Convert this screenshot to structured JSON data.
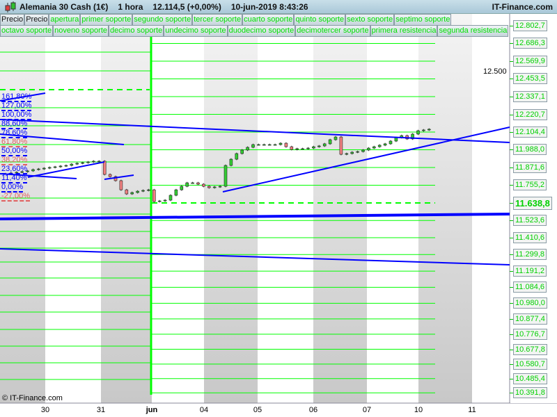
{
  "header": {
    "instrument": "Alemania 30 Cash (1€)",
    "timeframe": "1 hora",
    "price": "12.114,5 (+0,00%)",
    "datetime": "10-jun-2019 8:43:26",
    "site": "IT-Finance.com",
    "logo_icon": "candlestick-icon"
  },
  "buttons_row1": [
    "Precio",
    "Precio",
    "apertura",
    "primer soporte",
    "segundo soporte",
    "tercer soporte",
    "cuarto soporte",
    "quinto soporte",
    "sexto soporte",
    "septimo soporte"
  ],
  "buttons_row2": [
    "octavo soporte",
    "noveno soporte",
    "decimo soporte",
    "undecimo soporte",
    "duodecimo soporte",
    "decimotercer soporte",
    "primera resistencia",
    "segunda resistencia"
  ],
  "price_axis": {
    "labels": [
      {
        "text": "12.802,7",
        "value": 12802.7
      },
      {
        "text": "12.686,3",
        "value": 12686.3
      },
      {
        "text": "12.569,9",
        "value": 12569.9
      },
      {
        "text": "12.453,5",
        "value": 12453.5
      },
      {
        "text": "12.337,1",
        "value": 12337.1
      },
      {
        "text": "12.220,7",
        "value": 12220.7
      },
      {
        "text": "12.104,4",
        "value": 12104.4
      },
      {
        "text": "11.988,0",
        "value": 11988.0
      },
      {
        "text": "11.871,6",
        "value": 11871.6
      },
      {
        "text": "11.755,2",
        "value": 11755.2
      },
      {
        "text": "11.638,8",
        "value": 11638.8,
        "current": true
      },
      {
        "text": "11.523,6",
        "value": 11523.6
      },
      {
        "text": "11.410,6",
        "value": 11410.6
      },
      {
        "text": "11.299,8",
        "value": 11299.8
      },
      {
        "text": "11.191,2",
        "value": 11191.2
      },
      {
        "text": "11.084,6",
        "value": 11084.6
      },
      {
        "text": "10.980,0",
        "value": 10980.0
      },
      {
        "text": "10.877,4",
        "value": 10877.4
      },
      {
        "text": "10.776,7",
        "value": 10776.7
      },
      {
        "text": "10.677,8",
        "value": 10677.8
      },
      {
        "text": "10.580,7",
        "value": 10580.7
      },
      {
        "text": "10.485,4",
        "value": 10485.4
      },
      {
        "text": "10.391,8",
        "value": 10391.8
      }
    ],
    "plain_label": {
      "text": "12.500",
      "value": 12500
    }
  },
  "time_axis": [
    {
      "text": "30"
    },
    {
      "text": "31"
    },
    {
      "text": "jun",
      "bold": true
    },
    {
      "text": "04"
    },
    {
      "text": "05"
    },
    {
      "text": "06"
    },
    {
      "text": "07"
    },
    {
      "text": "10"
    },
    {
      "text": "11"
    }
  ],
  "fibonacci": [
    {
      "text": "161,80%",
      "color": "#0000ff"
    },
    {
      "text": "127,00%",
      "color": "#0000ff"
    },
    {
      "text": "100,00%",
      "color": "#0000ff"
    },
    {
      "text": "88,60%",
      "color": "#0000ff"
    },
    {
      "text": "78,60%",
      "color": "#0000ff"
    },
    {
      "text": "61,80%",
      "color": "#e06060"
    },
    {
      "text": "50,00%",
      "color": "#0000ff"
    },
    {
      "text": "38,20%",
      "color": "#e06060"
    },
    {
      "text": "23,60%",
      "color": "#0000ff"
    },
    {
      "text": "11,40%",
      "color": "#0000ff"
    },
    {
      "text": "0,00%",
      "color": "#0000ff"
    },
    {
      "text": "-27,00%",
      "color": "#e06060"
    }
  ],
  "closes": [
    11830,
    11835,
    11840,
    11844,
    11849,
    11858,
    11862,
    11867,
    11872,
    11876,
    11881,
    11885,
    11894,
    11899,
    11903,
    11908,
    11913,
    11913,
    11826,
    11812,
    11785,
    11725,
    11698,
    11707,
    11716,
    11721,
    11725,
    11648,
    11652,
    11657,
    11689,
    11725,
    11748,
    11771,
    11771,
    11762,
    11748,
    11739,
    11744,
    11748,
    11885,
    11926,
    11963,
    11986,
    12004,
    12022,
    12022,
    12022,
    12022,
    12022,
    12031,
    12008,
    11990,
    11995,
    11995,
    11999,
    12008,
    12013,
    12027,
    12054,
    12072,
    11958,
    11963,
    11972,
    11976,
    11986,
    11999,
    12008,
    12018,
    12027,
    12045,
    12068,
    12081,
    12059,
    12091,
    12113,
    12118,
    12123
  ],
  "colors": {
    "support": "#00ff00",
    "trendline": "#0000ff",
    "up_candle": "#33cc33",
    "down_candle": "#f08080"
  },
  "copyright": "© IT-Finance.com"
}
